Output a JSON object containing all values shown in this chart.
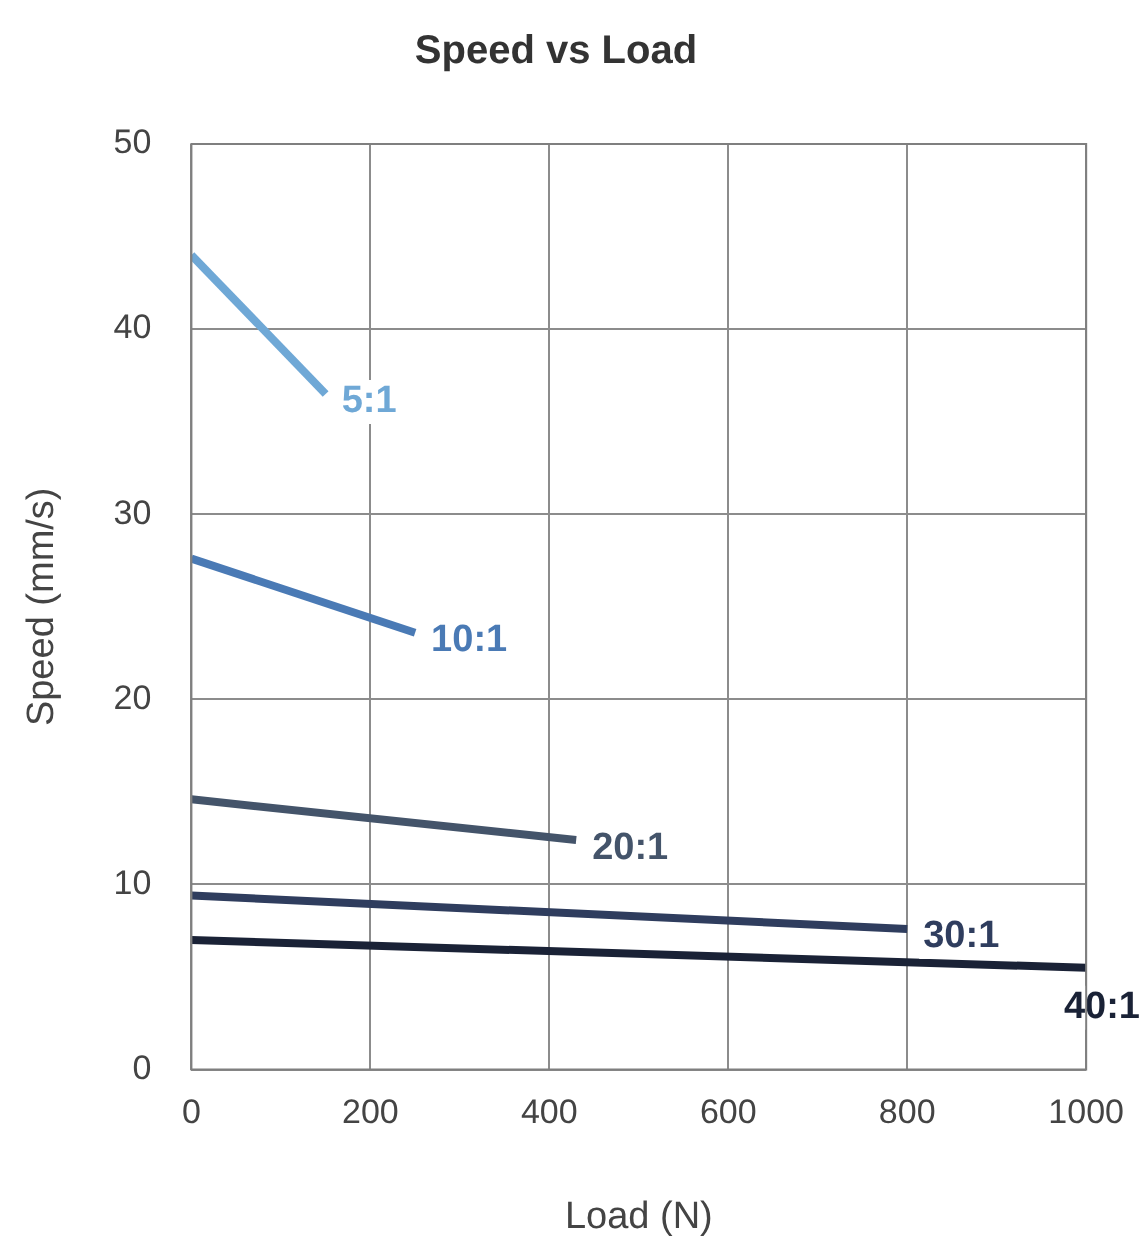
{
  "chart_data": {
    "type": "line",
    "title": "Speed vs Load",
    "xlabel": "Load (N)",
    "ylabel": "Speed (mm/s)",
    "xlim": [
      0,
      1000
    ],
    "xticks": [
      0,
      200,
      400,
      600,
      800,
      1000
    ],
    "ylim": [
      0,
      50
    ],
    "yticks": [
      0,
      10,
      20,
      30,
      40,
      50
    ],
    "grid": true,
    "legend": false,
    "marker": "none",
    "series": [
      {
        "name": "5:1",
        "color": "#6fa8d6",
        "x": [
          0,
          150
        ],
        "values": [
          44,
          36.5
        ]
      },
      {
        "name": "10:1",
        "color": "#4a7ab5",
        "x": [
          0,
          250
        ],
        "values": [
          27.6,
          23.6
        ]
      },
      {
        "name": "20:1",
        "color": "#44546a",
        "x": [
          0,
          430
        ],
        "values": [
          14.6,
          12.4
        ]
      },
      {
        "name": "30:1",
        "color": "#2f3d5e",
        "x": [
          0,
          800
        ],
        "values": [
          9.4,
          7.6
        ]
      },
      {
        "name": "40:1",
        "color": "#1a2236",
        "x": [
          0,
          1000
        ],
        "values": [
          7.0,
          5.5
        ]
      }
    ]
  }
}
